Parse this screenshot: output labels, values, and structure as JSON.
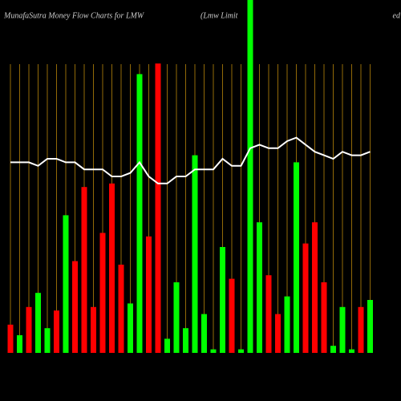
{
  "chart_data": {
    "type": "bar",
    "title": "MunafaSutra  Money Flow  Charts for LMW",
    "subtitle": "(Lmw  Limit",
    "subtitle_end": "ed",
    "values": [
      8,
      5,
      13,
      17,
      7,
      12,
      39,
      26,
      47,
      13,
      34,
      48,
      25,
      14,
      79,
      33,
      82,
      4,
      20,
      7,
      56,
      11,
      1,
      30,
      21,
      1,
      100,
      37,
      22,
      11,
      16,
      54,
      31,
      37,
      20,
      2,
      13,
      1,
      13,
      15
    ],
    "colors": [
      "#ff0000",
      "#00ff00",
      "#ff0000",
      "#00ff00",
      "#00ff00",
      "#ff0000",
      "#00ff00",
      "#ff0000",
      "#ff0000",
      "#ff0000",
      "#ff0000",
      "#ff0000",
      "#ff0000",
      "#00ff00",
      "#00ff00",
      "#ff0000",
      "#ff0000",
      "#00ff00",
      "#00ff00",
      "#00ff00",
      "#00ff00",
      "#00ff00",
      "#00ff00",
      "#00ff00",
      "#ff0000",
      "#00ff00",
      "#00ff00",
      "#00ff00",
      "#ff0000",
      "#ff0000",
      "#00ff00",
      "#00ff00",
      "#ff0000",
      "#ff0000",
      "#ff0000",
      "#00ff00",
      "#00ff00",
      "#00ff00",
      "#ff0000",
      "#00ff00"
    ],
    "line": {
      "color": "#ffffff",
      "values": [
        54,
        54,
        54,
        53,
        55,
        55,
        54,
        54,
        52,
        52,
        52,
        50,
        50,
        51,
        54,
        50,
        48,
        48,
        50,
        50,
        52,
        52,
        52,
        55,
        53,
        53,
        58,
        59,
        58,
        58,
        60,
        61,
        59,
        57,
        56,
        55,
        57,
        56,
        56,
        57
      ]
    },
    "grid_color": "#b8860b",
    "ylim": [
      0,
      100
    ]
  }
}
